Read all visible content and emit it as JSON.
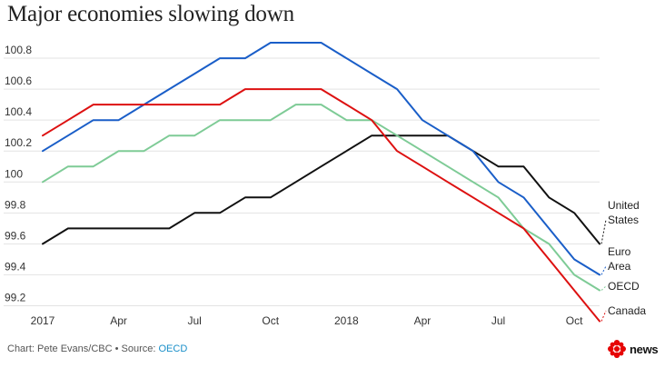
{
  "title": "Major economies slowing down",
  "footer": {
    "credit": "Chart: Pete Evans/CBC • Source: ",
    "source": "OECD"
  },
  "logo": {
    "text": "news",
    "icon": "cbc-gem-icon",
    "color": "#e60505"
  },
  "chart_data": {
    "type": "line",
    "title": "Major economies slowing down",
    "xlabel": "",
    "ylabel": "",
    "ylim": [
      99.15,
      101.0
    ],
    "yticks": [
      99.2,
      99.4,
      99.6,
      99.8,
      100,
      100.2,
      100.4,
      100.6,
      100.8
    ],
    "ytick_labels": [
      "99.2",
      "99.4",
      "99.6",
      "99.8",
      "100",
      "100.2",
      "100.4",
      "100.6",
      "100.8"
    ],
    "x": [
      "2017-01",
      "2017-02",
      "2017-03",
      "2017-04",
      "2017-05",
      "2017-06",
      "2017-07",
      "2017-08",
      "2017-09",
      "2017-10",
      "2017-11",
      "2017-12",
      "2018-01",
      "2018-02",
      "2018-03",
      "2018-04",
      "2018-05",
      "2018-06",
      "2018-07",
      "2018-08",
      "2018-09",
      "2018-10",
      "2018-11"
    ],
    "xticks": [
      {
        "label": "2017",
        "index": 0
      },
      {
        "label": "Apr",
        "index": 3
      },
      {
        "label": "Jul",
        "index": 6
      },
      {
        "label": "Oct",
        "index": 9
      },
      {
        "label": "2018",
        "index": 12
      },
      {
        "label": "Apr",
        "index": 15
      },
      {
        "label": "Jul",
        "index": 18
      },
      {
        "label": "Oct",
        "index": 21
      }
    ],
    "grid": true,
    "legend": "direct labels at line ends",
    "series": [
      {
        "name": "United States",
        "label_lines": [
          "United",
          "States"
        ],
        "color": "#111111",
        "values": [
          99.6,
          99.7,
          99.7,
          99.7,
          99.7,
          99.7,
          99.8,
          99.8,
          99.9,
          99.9,
          100.0,
          100.1,
          100.2,
          100.3,
          100.3,
          100.3,
          100.3,
          100.2,
          100.1,
          100.1,
          99.9,
          99.8,
          99.6
        ]
      },
      {
        "name": "Euro Area",
        "label_lines": [
          "Euro",
          "Area"
        ],
        "color": "#1a5ec8",
        "values": [
          100.2,
          100.3,
          100.4,
          100.4,
          100.5,
          100.6,
          100.7,
          100.8,
          100.8,
          100.9,
          100.9,
          100.9,
          100.8,
          100.7,
          100.6,
          100.4,
          100.3,
          100.2,
          100.0,
          99.9,
          99.7,
          99.5,
          99.4
        ]
      },
      {
        "name": "OECD",
        "label_lines": [
          "OECD"
        ],
        "color": "#7ecb96",
        "values": [
          100.0,
          100.1,
          100.1,
          100.2,
          100.2,
          100.3,
          100.3,
          100.4,
          100.4,
          100.4,
          100.5,
          100.5,
          100.4,
          100.4,
          100.3,
          100.2,
          100.1,
          100.0,
          99.9,
          99.7,
          99.6,
          99.4,
          99.3
        ]
      },
      {
        "name": "Canada",
        "label_lines": [
          "Canada"
        ],
        "color": "#dd1111",
        "values": [
          100.3,
          100.4,
          100.5,
          100.5,
          100.5,
          100.5,
          100.5,
          100.5,
          100.6,
          100.6,
          100.6,
          100.6,
          100.5,
          100.4,
          100.2,
          100.1,
          100.0,
          99.9,
          99.8,
          99.7,
          99.5,
          99.3,
          99.1
        ]
      }
    ]
  }
}
